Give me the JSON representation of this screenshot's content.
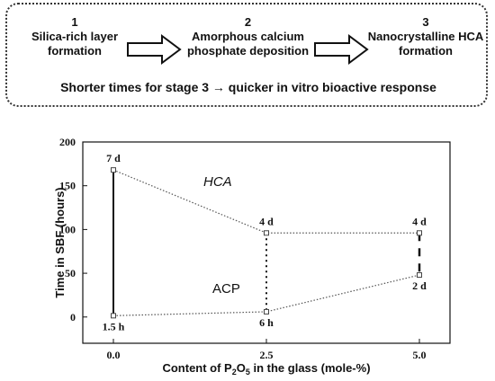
{
  "scheme": {
    "stages": [
      {
        "number": "1",
        "label_line1": "Silica-rich layer",
        "label_line2": "formation"
      },
      {
        "number": "2",
        "label_line1": "Amorphous calcium",
        "label_line2": "phosphate deposition"
      },
      {
        "number": "3",
        "label_line1": "Nanocrystalline HCA",
        "label_line2": "formation"
      }
    ],
    "summary_before": "Shorter times for stage 3 ",
    "summary_arrow": "→",
    "summary_after": " quicker in vitro bioactive response"
  },
  "chart_data": {
    "type": "line",
    "x": [
      0.0,
      2.5,
      5.0
    ],
    "x_tick_labels": [
      "0.0",
      "2.5",
      "5.0"
    ],
    "xlim": [
      -0.5,
      5.5
    ],
    "ylim": [
      -30,
      200
    ],
    "y_ticks": [
      0,
      50,
      100,
      150,
      200
    ],
    "ylabel": "Time in SBF (hours)",
    "xlabel_before": "Content of P",
    "xlabel_sub": "2",
    "xlabel_mid": "O",
    "xlabel_sub2": "5",
    "xlabel_after": " in the glass (mole-%)",
    "series": [
      {
        "name": "HCA",
        "values": [
          168,
          96,
          96
        ],
        "point_labels": [
          "7 d",
          "4 d",
          "4 d"
        ]
      },
      {
        "name": "ACP",
        "values": [
          1.5,
          6,
          48
        ],
        "point_labels": [
          "1.5 h",
          "6 h",
          "2 d"
        ]
      }
    ],
    "grid": false,
    "colors": {
      "line": "#555555",
      "marker_fill": "#ffffff",
      "text": "#111111"
    }
  }
}
